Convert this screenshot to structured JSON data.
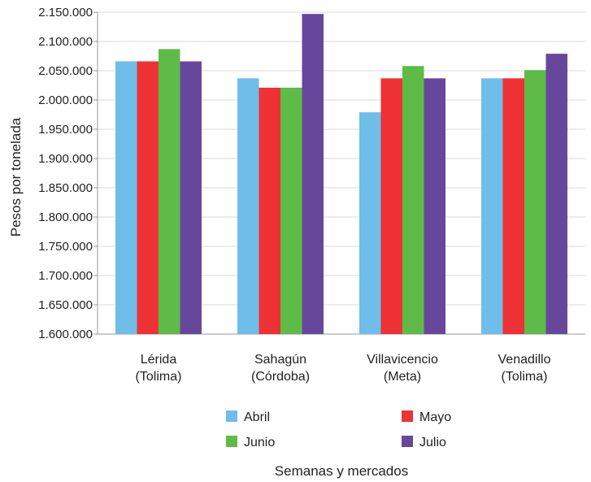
{
  "chart_data": {
    "type": "bar",
    "xlabel": "Semanas y mercados",
    "ylabel": "Pesos por tonelada",
    "ylim": [
      1600000,
      2150000
    ],
    "yticks": [
      "1.600.000",
      "1.650.000",
      "1.700.000",
      "1.750.000",
      "1.800.000",
      "1.850.000",
      "1.900.000",
      "1.950.000",
      "2.000.000",
      "2.050.000",
      "2.100.000",
      "2.150.000"
    ],
    "categories": [
      {
        "line1": "Lérida",
        "line2": "(Tolima)"
      },
      {
        "line1": "Sahagún",
        "line2": "(Córdoba)"
      },
      {
        "line1": "Villavicencio",
        "line2": "(Meta)"
      },
      {
        "line1": "Venadillo",
        "line2": "(Tolima)"
      }
    ],
    "series": [
      {
        "name": "Abril",
        "color": "#6fbde9",
        "values": [
          2066000,
          2037000,
          1979000,
          2037000
        ]
      },
      {
        "name": "Mayo",
        "color": "#ee3135",
        "values": [
          2066000,
          2021000,
          2037000,
          2037000
        ]
      },
      {
        "name": "Junio",
        "color": "#5ebb47",
        "values": [
          2087000,
          2021000,
          2058000,
          2051000
        ]
      },
      {
        "name": "Julio",
        "color": "#67479c",
        "values": [
          2066000,
          2147000,
          2037000,
          2079000
        ]
      }
    ],
    "grid": true,
    "legend": "bottom"
  }
}
